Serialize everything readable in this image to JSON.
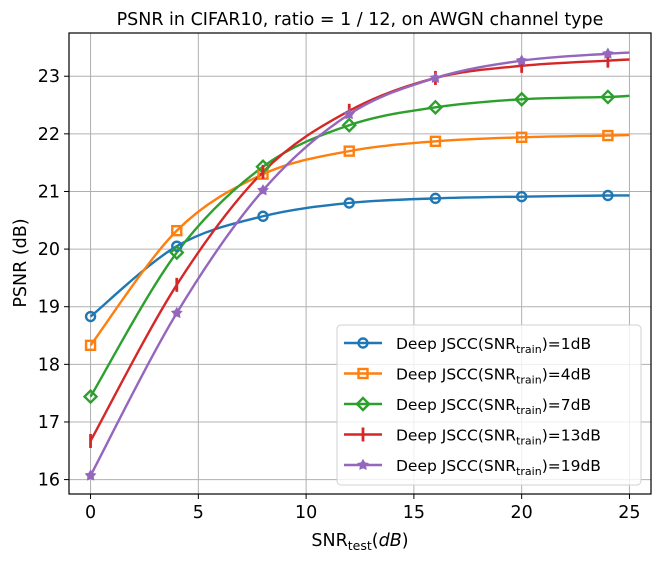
{
  "chart_data": {
    "type": "line",
    "title": "PSNR in CIFAR10, ratio = 1 / 12, on AWGN channel type",
    "xlabel": {
      "main": "SNR",
      "sub": "test",
      "suffix_open": "(",
      "suffix_italic": "dB",
      "suffix_close": ")"
    },
    "ylabel": "PSNR (dB)",
    "xlim": [
      -1.0,
      26.0
    ],
    "ylim": [
      15.75,
      23.75
    ],
    "xticks": [
      0,
      5,
      10,
      15,
      20,
      25
    ],
    "yticks": [
      16,
      17,
      18,
      19,
      20,
      21,
      22,
      23
    ],
    "grid": true,
    "legend_position": "lower-right",
    "x_markers": [
      0,
      4,
      8,
      12,
      16,
      20,
      24
    ],
    "x_end": 25,
    "series": [
      {
        "name": "Deep JSCC(SNR_train)=1dB",
        "legend_prefix": "Deep JSCC(SNR",
        "legend_sub": "train",
        "legend_suffix": ")=1dB",
        "color": "#1f77b4",
        "marker": "circle",
        "values": [
          18.83,
          20.05,
          20.57,
          20.8,
          20.88,
          20.91,
          20.93
        ],
        "end_value": 20.93
      },
      {
        "name": "Deep JSCC(SNR_train)=4dB",
        "legend_prefix": "Deep JSCC(SNR",
        "legend_sub": "train",
        "legend_suffix": ")=4dB",
        "color": "#ff7f0e",
        "marker": "square",
        "values": [
          18.33,
          20.32,
          21.3,
          21.7,
          21.87,
          21.94,
          21.97
        ],
        "end_value": 21.98
      },
      {
        "name": "Deep JSCC(SNR_train)=7dB",
        "legend_prefix": "Deep JSCC(SNR",
        "legend_sub": "train",
        "legend_suffix": ")=7dB",
        "color": "#2ca02c",
        "marker": "diamond",
        "values": [
          17.44,
          19.94,
          21.43,
          22.15,
          22.46,
          22.6,
          22.64
        ],
        "end_value": 22.66
      },
      {
        "name": "Deep JSCC(SNR_train)=13dB",
        "legend_prefix": "Deep JSCC(SNR",
        "legend_sub": "train",
        "legend_suffix": ")=13dB",
        "color": "#d62728",
        "marker": "vline",
        "values": [
          16.67,
          19.38,
          21.34,
          22.4,
          22.97,
          23.18,
          23.27
        ],
        "end_value": 23.29
      },
      {
        "name": "Deep JSCC(SNR_train)=19dB",
        "legend_prefix": "Deep JSCC(SNR",
        "legend_sub": "train",
        "legend_suffix": ")=19dB",
        "color": "#9467bd",
        "marker": "star",
        "values": [
          16.07,
          18.89,
          21.02,
          22.34,
          22.97,
          23.27,
          23.39
        ],
        "end_value": 23.41
      }
    ]
  }
}
